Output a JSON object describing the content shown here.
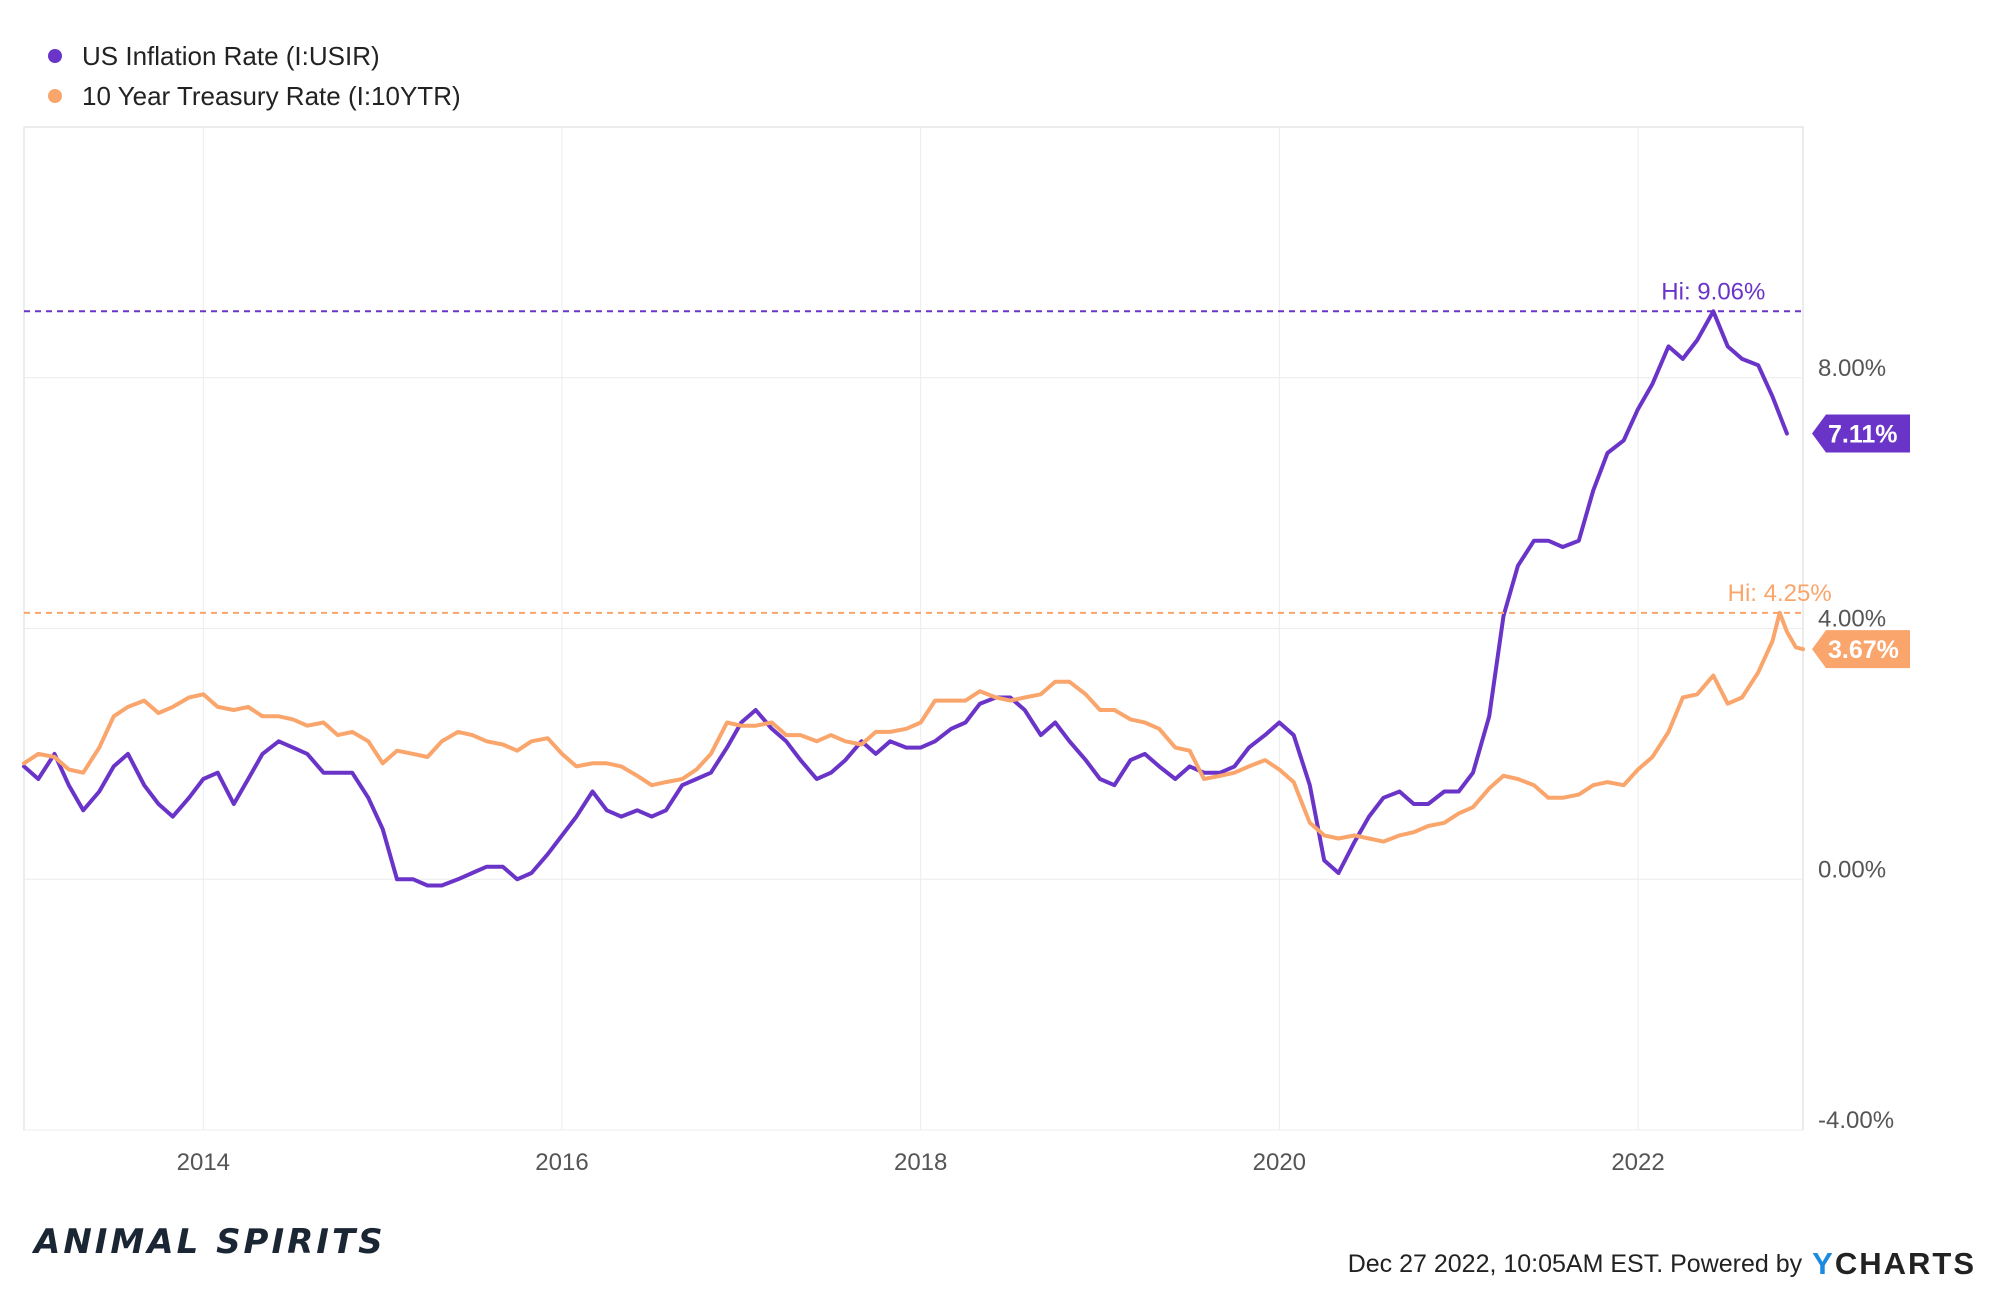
{
  "legend": [
    {
      "label": "US Inflation Rate (I:USIR)",
      "color": "#6a34c8"
    },
    {
      "label": "10 Year Treasury Rate (I:10YTR)",
      "color": "#f9a56b"
    }
  ],
  "chart_data": {
    "type": "line",
    "x_ticks": [
      "2014",
      "2016",
      "2018",
      "2020",
      "2022"
    ],
    "y_ticks": [
      "-4.00%",
      "0.00%",
      "4.00%",
      "8.00%"
    ],
    "ylim": [
      -4,
      12
    ],
    "xlim": [
      2013.0,
      2022.92
    ],
    "series": [
      {
        "name": "US Inflation Rate (I:USIR)",
        "color": "#6a34c8",
        "hi_label": "Hi: 9.06%",
        "hi_value": 9.06,
        "last_label": "7.11%",
        "last_value": 7.11,
        "points": [
          [
            2013.0,
            1.8
          ],
          [
            2013.08,
            1.6
          ],
          [
            2013.17,
            2.0
          ],
          [
            2013.25,
            1.5
          ],
          [
            2013.33,
            1.1
          ],
          [
            2013.42,
            1.4
          ],
          [
            2013.5,
            1.8
          ],
          [
            2013.58,
            2.0
          ],
          [
            2013.67,
            1.5
          ],
          [
            2013.75,
            1.2
          ],
          [
            2013.83,
            1.0
          ],
          [
            2013.92,
            1.3
          ],
          [
            2014.0,
            1.6
          ],
          [
            2014.08,
            1.7
          ],
          [
            2014.17,
            1.2
          ],
          [
            2014.25,
            1.6
          ],
          [
            2014.33,
            2.0
          ],
          [
            2014.42,
            2.2
          ],
          [
            2014.5,
            2.1
          ],
          [
            2014.58,
            2.0
          ],
          [
            2014.67,
            1.7
          ],
          [
            2014.75,
            1.7
          ],
          [
            2014.83,
            1.7
          ],
          [
            2014.92,
            1.3
          ],
          [
            2015.0,
            0.8
          ],
          [
            2015.08,
            0.0
          ],
          [
            2015.17,
            0.0
          ],
          [
            2015.25,
            -0.1
          ],
          [
            2015.33,
            -0.1
          ],
          [
            2015.42,
            0.0
          ],
          [
            2015.5,
            0.1
          ],
          [
            2015.58,
            0.2
          ],
          [
            2015.67,
            0.2
          ],
          [
            2015.75,
            0.0
          ],
          [
            2015.83,
            0.1
          ],
          [
            2015.92,
            0.4
          ],
          [
            2016.0,
            0.7
          ],
          [
            2016.08,
            1.0
          ],
          [
            2016.17,
            1.4
          ],
          [
            2016.25,
            1.1
          ],
          [
            2016.33,
            1.0
          ],
          [
            2016.42,
            1.1
          ],
          [
            2016.5,
            1.0
          ],
          [
            2016.58,
            1.1
          ],
          [
            2016.67,
            1.5
          ],
          [
            2016.75,
            1.6
          ],
          [
            2016.83,
            1.7
          ],
          [
            2016.92,
            2.1
          ],
          [
            2017.0,
            2.5
          ],
          [
            2017.08,
            2.7
          ],
          [
            2017.17,
            2.4
          ],
          [
            2017.25,
            2.2
          ],
          [
            2017.33,
            1.9
          ],
          [
            2017.42,
            1.6
          ],
          [
            2017.5,
            1.7
          ],
          [
            2017.58,
            1.9
          ],
          [
            2017.67,
            2.2
          ],
          [
            2017.75,
            2.0
          ],
          [
            2017.83,
            2.2
          ],
          [
            2017.92,
            2.1
          ],
          [
            2018.0,
            2.1
          ],
          [
            2018.08,
            2.2
          ],
          [
            2018.17,
            2.4
          ],
          [
            2018.25,
            2.5
          ],
          [
            2018.33,
            2.8
          ],
          [
            2018.42,
            2.9
          ],
          [
            2018.5,
            2.9
          ],
          [
            2018.58,
            2.7
          ],
          [
            2018.67,
            2.3
          ],
          [
            2018.75,
            2.5
          ],
          [
            2018.83,
            2.2
          ],
          [
            2018.92,
            1.9
          ],
          [
            2019.0,
            1.6
          ],
          [
            2019.08,
            1.5
          ],
          [
            2019.17,
            1.9
          ],
          [
            2019.25,
            2.0
          ],
          [
            2019.33,
            1.8
          ],
          [
            2019.42,
            1.6
          ],
          [
            2019.5,
            1.8
          ],
          [
            2019.58,
            1.7
          ],
          [
            2019.67,
            1.7
          ],
          [
            2019.75,
            1.8
          ],
          [
            2019.83,
            2.1
          ],
          [
            2019.92,
            2.3
          ],
          [
            2020.0,
            2.5
          ],
          [
            2020.08,
            2.3
          ],
          [
            2020.17,
            1.5
          ],
          [
            2020.25,
            0.3
          ],
          [
            2020.33,
            0.1
          ],
          [
            2020.42,
            0.6
          ],
          [
            2020.5,
            1.0
          ],
          [
            2020.58,
            1.3
          ],
          [
            2020.67,
            1.4
          ],
          [
            2020.75,
            1.2
          ],
          [
            2020.83,
            1.2
          ],
          [
            2020.92,
            1.4
          ],
          [
            2021.0,
            1.4
          ],
          [
            2021.08,
            1.7
          ],
          [
            2021.17,
            2.6
          ],
          [
            2021.25,
            4.2
          ],
          [
            2021.33,
            5.0
          ],
          [
            2021.42,
            5.4
          ],
          [
            2021.5,
            5.4
          ],
          [
            2021.58,
            5.3
          ],
          [
            2021.67,
            5.4
          ],
          [
            2021.75,
            6.2
          ],
          [
            2021.83,
            6.8
          ],
          [
            2021.92,
            7.0
          ],
          [
            2022.0,
            7.5
          ],
          [
            2022.08,
            7.9
          ],
          [
            2022.17,
            8.5
          ],
          [
            2022.25,
            8.3
          ],
          [
            2022.33,
            8.6
          ],
          [
            2022.42,
            9.06
          ],
          [
            2022.5,
            8.5
          ],
          [
            2022.58,
            8.3
          ],
          [
            2022.67,
            8.2
          ],
          [
            2022.75,
            7.7
          ],
          [
            2022.83,
            7.11
          ]
        ]
      },
      {
        "name": "10 Year Treasury Rate (I:10YTR)",
        "color": "#f9a56b",
        "hi_label": "Hi: 4.25%",
        "hi_value": 4.25,
        "last_label": "3.67%",
        "last_value": 3.67,
        "points": [
          [
            2013.0,
            1.85
          ],
          [
            2013.08,
            2.0
          ],
          [
            2013.17,
            1.95
          ],
          [
            2013.25,
            1.75
          ],
          [
            2013.33,
            1.7
          ],
          [
            2013.42,
            2.1
          ],
          [
            2013.5,
            2.6
          ],
          [
            2013.58,
            2.75
          ],
          [
            2013.67,
            2.85
          ],
          [
            2013.75,
            2.65
          ],
          [
            2013.83,
            2.75
          ],
          [
            2013.92,
            2.9
          ],
          [
            2014.0,
            2.95
          ],
          [
            2014.08,
            2.75
          ],
          [
            2014.17,
            2.7
          ],
          [
            2014.25,
            2.75
          ],
          [
            2014.33,
            2.6
          ],
          [
            2014.42,
            2.6
          ],
          [
            2014.5,
            2.55
          ],
          [
            2014.58,
            2.45
          ],
          [
            2014.67,
            2.5
          ],
          [
            2014.75,
            2.3
          ],
          [
            2014.83,
            2.35
          ],
          [
            2014.92,
            2.2
          ],
          [
            2015.0,
            1.85
          ],
          [
            2015.08,
            2.05
          ],
          [
            2015.17,
            2.0
          ],
          [
            2015.25,
            1.95
          ],
          [
            2015.33,
            2.2
          ],
          [
            2015.42,
            2.35
          ],
          [
            2015.5,
            2.3
          ],
          [
            2015.58,
            2.2
          ],
          [
            2015.67,
            2.15
          ],
          [
            2015.75,
            2.05
          ],
          [
            2015.83,
            2.2
          ],
          [
            2015.92,
            2.25
          ],
          [
            2016.0,
            2.0
          ],
          [
            2016.08,
            1.8
          ],
          [
            2016.17,
            1.85
          ],
          [
            2016.25,
            1.85
          ],
          [
            2016.33,
            1.8
          ],
          [
            2016.42,
            1.65
          ],
          [
            2016.5,
            1.5
          ],
          [
            2016.58,
            1.55
          ],
          [
            2016.67,
            1.6
          ],
          [
            2016.75,
            1.75
          ],
          [
            2016.83,
            2.0
          ],
          [
            2016.92,
            2.5
          ],
          [
            2017.0,
            2.45
          ],
          [
            2017.08,
            2.45
          ],
          [
            2017.17,
            2.5
          ],
          [
            2017.25,
            2.3
          ],
          [
            2017.33,
            2.3
          ],
          [
            2017.42,
            2.2
          ],
          [
            2017.5,
            2.3
          ],
          [
            2017.58,
            2.2
          ],
          [
            2017.67,
            2.15
          ],
          [
            2017.75,
            2.35
          ],
          [
            2017.83,
            2.35
          ],
          [
            2017.92,
            2.4
          ],
          [
            2018.0,
            2.5
          ],
          [
            2018.08,
            2.85
          ],
          [
            2018.17,
            2.85
          ],
          [
            2018.25,
            2.85
          ],
          [
            2018.33,
            3.0
          ],
          [
            2018.42,
            2.9
          ],
          [
            2018.5,
            2.85
          ],
          [
            2018.58,
            2.9
          ],
          [
            2018.67,
            2.95
          ],
          [
            2018.75,
            3.15
          ],
          [
            2018.83,
            3.15
          ],
          [
            2018.92,
            2.95
          ],
          [
            2019.0,
            2.7
          ],
          [
            2019.08,
            2.7
          ],
          [
            2019.17,
            2.55
          ],
          [
            2019.25,
            2.5
          ],
          [
            2019.33,
            2.4
          ],
          [
            2019.42,
            2.1
          ],
          [
            2019.5,
            2.05
          ],
          [
            2019.58,
            1.6
          ],
          [
            2019.67,
            1.65
          ],
          [
            2019.75,
            1.7
          ],
          [
            2019.83,
            1.8
          ],
          [
            2019.92,
            1.9
          ],
          [
            2020.0,
            1.75
          ],
          [
            2020.08,
            1.55
          ],
          [
            2020.17,
            0.9
          ],
          [
            2020.25,
            0.7
          ],
          [
            2020.33,
            0.65
          ],
          [
            2020.42,
            0.7
          ],
          [
            2020.5,
            0.65
          ],
          [
            2020.58,
            0.6
          ],
          [
            2020.67,
            0.7
          ],
          [
            2020.75,
            0.75
          ],
          [
            2020.83,
            0.85
          ],
          [
            2020.92,
            0.9
          ],
          [
            2021.0,
            1.05
          ],
          [
            2021.08,
            1.15
          ],
          [
            2021.17,
            1.45
          ],
          [
            2021.25,
            1.65
          ],
          [
            2021.33,
            1.6
          ],
          [
            2021.42,
            1.5
          ],
          [
            2021.5,
            1.3
          ],
          [
            2021.58,
            1.3
          ],
          [
            2021.67,
            1.35
          ],
          [
            2021.75,
            1.5
          ],
          [
            2021.83,
            1.55
          ],
          [
            2021.92,
            1.5
          ],
          [
            2022.0,
            1.75
          ],
          [
            2022.08,
            1.95
          ],
          [
            2022.17,
            2.35
          ],
          [
            2022.25,
            2.9
          ],
          [
            2022.33,
            2.95
          ],
          [
            2022.42,
            3.25
          ],
          [
            2022.5,
            2.8
          ],
          [
            2022.58,
            2.9
          ],
          [
            2022.67,
            3.3
          ],
          [
            2022.75,
            3.8
          ],
          [
            2022.79,
            4.25
          ],
          [
            2022.83,
            3.95
          ],
          [
            2022.88,
            3.7
          ],
          [
            2022.92,
            3.67
          ]
        ]
      }
    ]
  },
  "footer": {
    "brand": "ANIMAL SPIRITS",
    "credit": "Dec 27 2022, 10:05AM EST. Powered by",
    "logo_y": "Y",
    "logo_rest": "CHARTS"
  }
}
